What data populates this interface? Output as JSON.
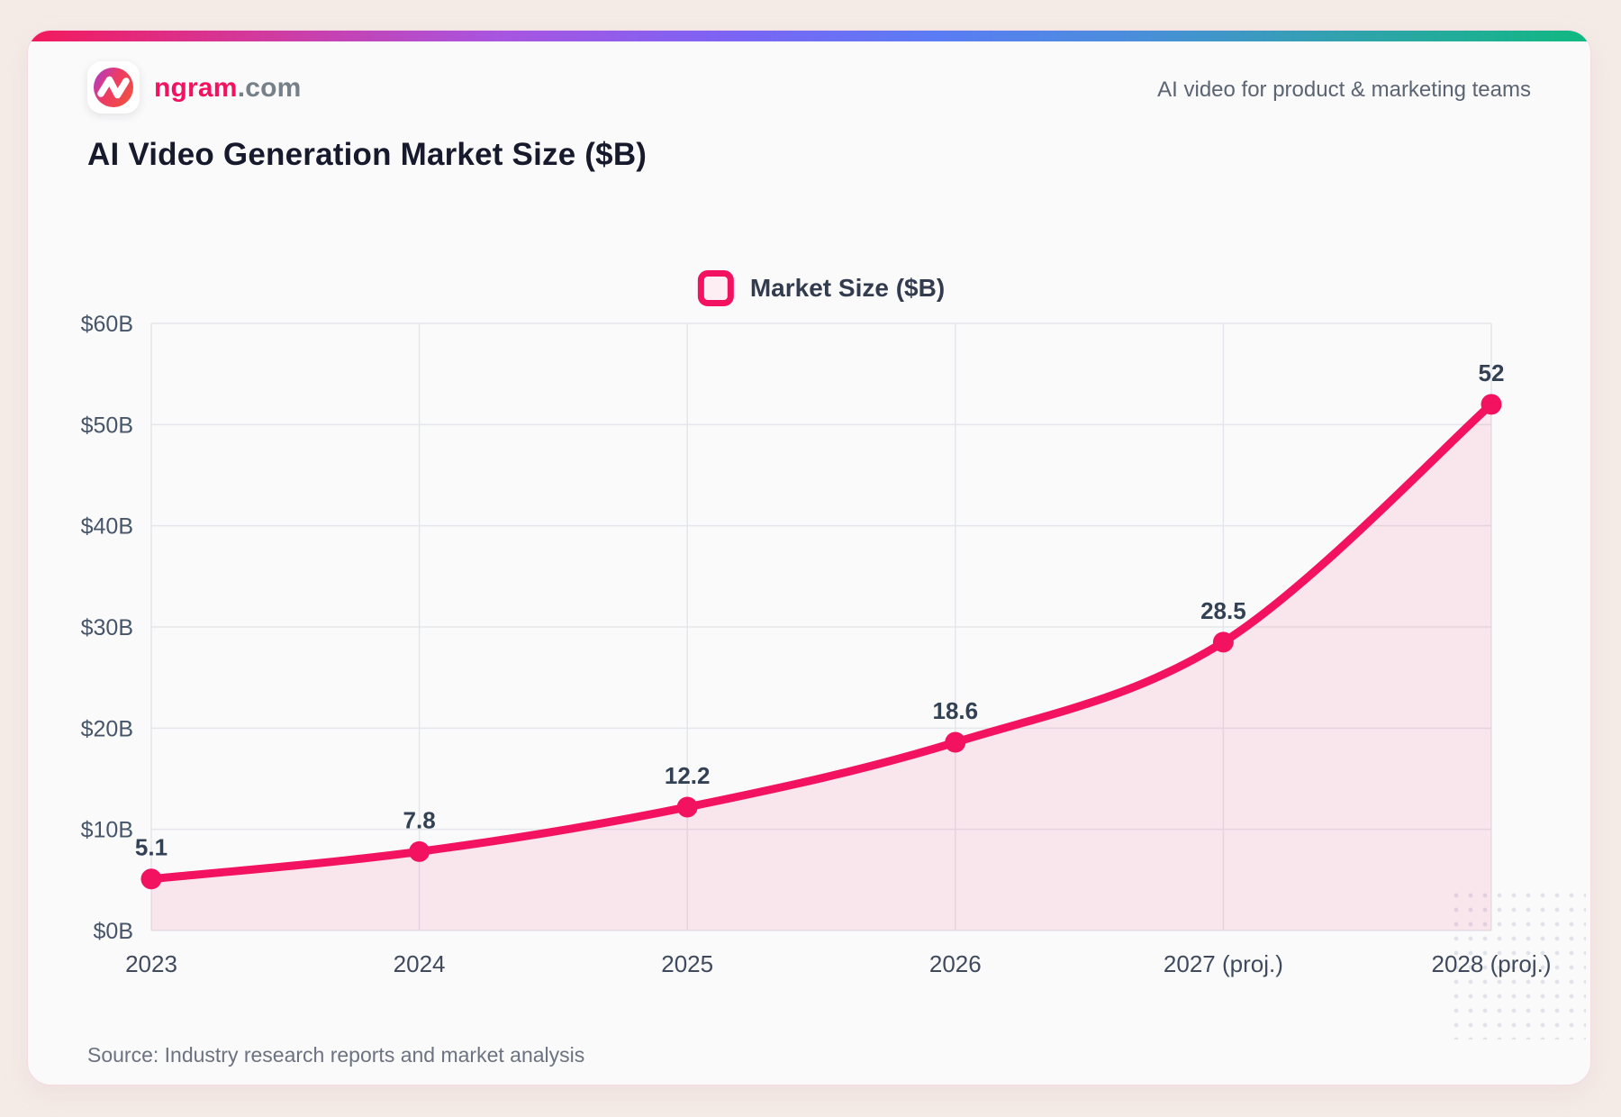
{
  "header": {
    "logo_icon": "n-zigzag-logo",
    "brand_name": "ngram",
    "brand_suffix": ".com",
    "tagline": "AI video for product & marketing teams"
  },
  "title": "AI Video Generation Market Size ($B)",
  "legend": {
    "label": "Market Size ($B)"
  },
  "source": "Source: Industry research reports and market analysis",
  "colors": {
    "accent": "#f3125f",
    "area_fill_opacity": 0.09,
    "grid": "#e4e6eb",
    "axis_tick_text": "#475569",
    "point_label_text": "#334155",
    "title_text": "#171a2c",
    "muted_text": "#6b7280",
    "card_bg": "#fafafa",
    "page_bg": "#f4ebe7"
  },
  "chart_data": {
    "type": "line",
    "title": "AI Video Generation Market Size ($B)",
    "x": [
      "2023",
      "2024",
      "2025",
      "2026",
      "2027 (proj.)",
      "2028 (proj.)"
    ],
    "series": [
      {
        "name": "Market Size ($B)",
        "values": [
          5.1,
          7.8,
          12.2,
          18.6,
          28.5,
          52
        ]
      }
    ],
    "point_labels": [
      "5.1",
      "7.8",
      "12.2",
      "18.6",
      "28.5",
      "52"
    ],
    "xlabel": "",
    "ylabel": "",
    "ylim": [
      0,
      60
    ],
    "yticks": [
      0,
      10,
      20,
      30,
      40,
      50,
      60
    ],
    "ytick_labels": [
      "$0B",
      "$10B",
      "$20B",
      "$30B",
      "$40B",
      "$50B",
      "$60B"
    ],
    "grid": true,
    "area_fill": true,
    "smooth": true,
    "legend_position": "top-center"
  }
}
